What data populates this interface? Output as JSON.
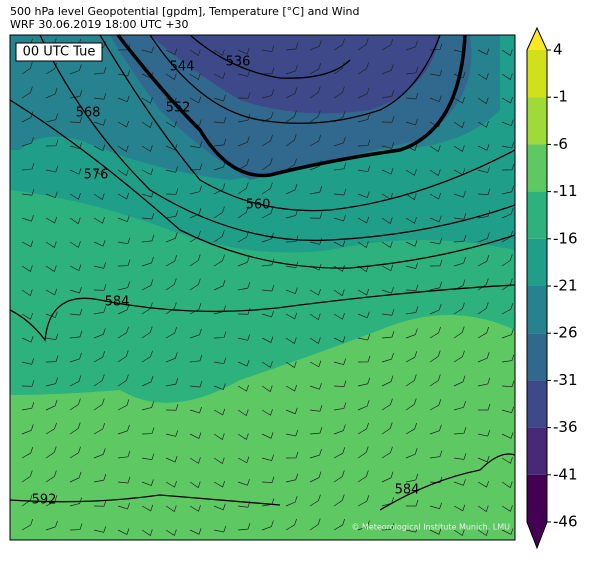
{
  "header": {
    "line1": "500 hPa level Geopotential [gpdm], Temperature [°C] and Wind",
    "line2": "WRF 30.06.2019 18:00 UTC +30"
  },
  "time_label": "00 UTC Tue",
  "contour_labels": [
    536,
    544,
    552,
    560,
    568,
    576,
    584,
    592,
    584
  ],
  "credit": "© Meteorological Institute Munich, LMU",
  "colorbar": {
    "ticks": [
      4,
      -1,
      -6,
      -11,
      -16,
      -21,
      -26,
      -31,
      -36,
      -41,
      -46
    ],
    "colors": [
      "#d0e11c",
      "#a0da39",
      "#5ec962",
      "#2db27d",
      "#1f9e89",
      "#26828e",
      "#31688e",
      "#3e4989",
      "#482878",
      "#440154"
    ],
    "top_color": "#fde725",
    "bottom_color": "#440154"
  }
}
